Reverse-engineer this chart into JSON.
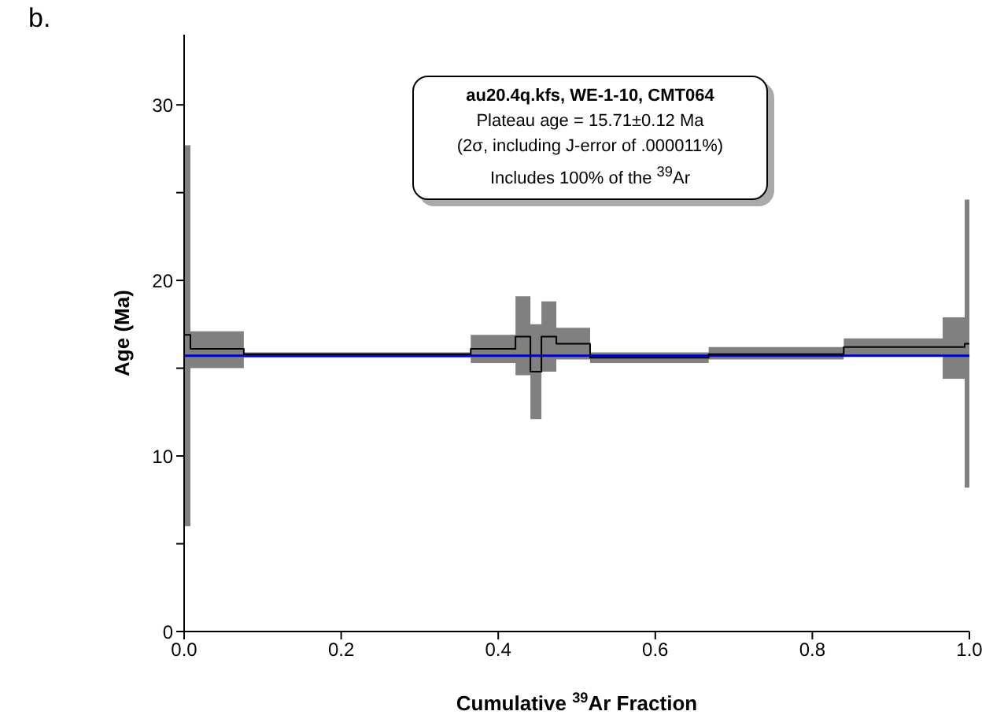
{
  "chart_data": {
    "type": "step",
    "xlabel": "Cumulative $^{39}$Ar Fraction",
    "ylabel": "Age (Ma)",
    "annotations": [
      "b.",
      "au20.4q.kfs, WE-1-10, CMT064",
      "Plateau age = 15.71±0.12 Ma",
      "(2σ, including J-error of .000011%)",
      "Includes 100% of the $^{39}$Ar"
    ],
    "series": [
      {
        "color": "#000000",
        "x": [
          0,
          0.008,
          0.076,
          0.365,
          0.422,
          0.441,
          0.455,
          0.474,
          0.517,
          0.668,
          0.84,
          0.966,
          0.994,
          1.0
        ],
        "values": [
          16.9,
          16.1,
          15.8,
          16.1,
          16.8,
          14.8,
          16.8,
          16.4,
          15.6,
          15.8,
          16.2,
          16.2,
          16.4,
          16.4
        ],
        "lower": [
          6.0,
          15.0,
          15.6,
          15.3,
          14.6,
          12.1,
          14.8,
          15.5,
          15.3,
          15.5,
          15.7,
          14.4,
          8.2,
          8.2
        ],
        "upper": [
          27.7,
          17.1,
          15.9,
          16.9,
          19.1,
          17.5,
          18.8,
          17.3,
          15.9,
          16.2,
          16.7,
          17.9,
          24.6,
          24.6
        ]
      }
    ],
    "xlim": [
      0,
      1
    ],
    "xticks": [
      {
        "value": 0,
        "label": "0.0"
      },
      0.2,
      0.4,
      0.6,
      0.8,
      {
        "value": 1,
        "label": "1.0"
      }
    ],
    "ylim": [
      0,
      34
    ],
    "yticks": [
      0,
      {
        "value": 5,
        "label": null
      },
      10,
      {
        "value": 15,
        "label": null
      },
      20,
      {
        "value": 25,
        "label": null
      },
      30
    ],
    "ref_lines": [
      {
        "axis": "y",
        "value": 15.71,
        "color": "#0000cc"
      }
    ],
    "grid": false,
    "legend": false,
    "marker": "none",
    "line_style": "solid"
  }
}
